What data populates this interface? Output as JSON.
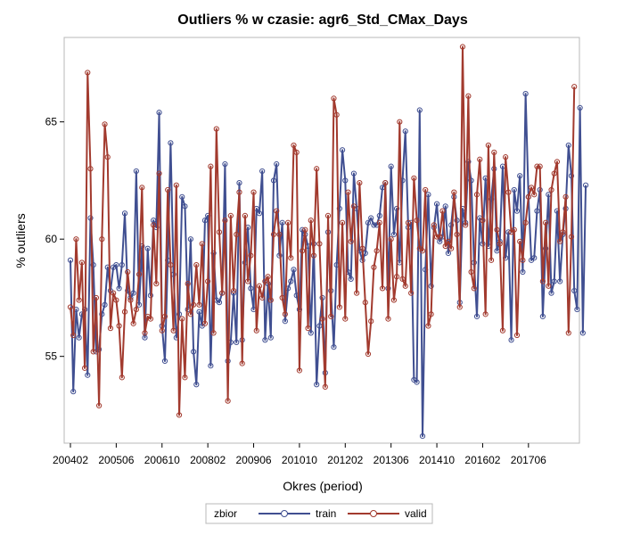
{
  "chart_data": {
    "type": "line",
    "title": "Outliers % w czasie: agr6_Std_CMax_Days",
    "xlabel": "Okres (period)",
    "ylabel": "% outliers",
    "ylim": [
      51.3,
      68.6
    ],
    "y_ticks": [
      "55",
      "60",
      "65"
    ],
    "x_tick_labels": [
      "200402",
      "200506",
      "200610",
      "200802",
      "200906",
      "201010",
      "201202",
      "201306",
      "201410",
      "201602",
      "201706"
    ],
    "legend": {
      "title": "zbior",
      "position": "bottom"
    },
    "x_index_range": [
      0,
      175
    ],
    "series": [
      {
        "name": "train",
        "color": "#404f91",
        "values": [
          59.1,
          53.5,
          57.0,
          55.8,
          56.8,
          57.0,
          54.2,
          60.9,
          58.9,
          55.2,
          55.3,
          56.8,
          57.2,
          58.8,
          57.8,
          58.8,
          58.9,
          57.9,
          58.9,
          61.1,
          57.8,
          57.5,
          57.7,
          62.9,
          57.2,
          59.7,
          55.8,
          59.6,
          57.6,
          60.8,
          60.5,
          65.4,
          56.3,
          54.8,
          59.1,
          64.1,
          58.5,
          55.8,
          56.8,
          61.8,
          61.4,
          57.0,
          60.0,
          55.2,
          53.8,
          56.9,
          56.3,
          60.8,
          61.0,
          54.6,
          59.4,
          57.4,
          57.3,
          57.7,
          63.2,
          54.8,
          55.6,
          57.7,
          55.6,
          62.4,
          55.7,
          59.0,
          60.5,
          57.9,
          57.0,
          61.3,
          61.1,
          62.9,
          55.7,
          58.1,
          55.8,
          62.5,
          63.2,
          59.3,
          60.7,
          56.5,
          57.9,
          58.2,
          58.7,
          57.6,
          57.0,
          60.4,
          60.2,
          59.7,
          56.0,
          59.8,
          53.8,
          56.3,
          57.5,
          54.3,
          60.3,
          57.8,
          55.4,
          58.9,
          61.3,
          63.8,
          62.5,
          58.6,
          58.3,
          62.8,
          61.3,
          59.5,
          59.1,
          59.4,
          60.7,
          60.9,
          60.6,
          60.6,
          61.0,
          62.2,
          62.4,
          57.9,
          63.1,
          60.2,
          61.3,
          59.0,
          62.5,
          64.6,
          60.5,
          60.7,
          54.0,
          53.9,
          65.5,
          51.6,
          58.7,
          61.9,
          58.0,
          60.5,
          61.5,
          59.9,
          60.1,
          61.4,
          59.4,
          60.6,
          61.8,
          60.8,
          57.3,
          61.3,
          60.7,
          63.3,
          62.5,
          59.0,
          56.7,
          60.9,
          59.8,
          62.6,
          59.7,
          61.7,
          63.0,
          59.5,
          59.9,
          63.1,
          59.2,
          60.3,
          55.7,
          62.1,
          61.2,
          62.7,
          58.6,
          66.2,
          61.8,
          59.1,
          59.2,
          61.2,
          62.1,
          56.7,
          59.6,
          61.9,
          57.7,
          58.2,
          61.2,
          58.2,
          60.2,
          61.3,
          64.0,
          62.7,
          57.8,
          57.0,
          65.6,
          56.0,
          62.3
        ]
      },
      {
        "name": "valid",
        "color": "#a23a2e",
        "values": [
          57.1,
          55.9,
          60.0,
          57.4,
          59.0,
          54.5,
          67.1,
          63.0,
          55.2,
          57.5,
          52.9,
          60.0,
          64.9,
          63.5,
          56.2,
          57.7,
          57.4,
          56.3,
          54.1,
          56.9,
          58.6,
          57.4,
          56.4,
          57.0,
          58.5,
          62.2,
          56.0,
          56.7,
          56.6,
          60.6,
          58.1,
          62.8,
          56.1,
          56.7,
          62.1,
          58.9,
          56.1,
          62.3,
          52.5,
          56.6,
          54.1,
          58.1,
          56.8,
          57.2,
          58.9,
          57.2,
          59.8,
          56.4,
          58.2,
          63.1,
          56.0,
          64.7,
          60.3,
          57.7,
          60.8,
          53.1,
          61.0,
          57.8,
          60.2,
          62.0,
          54.7,
          61.0,
          58.2,
          59.3,
          62.0,
          56.1,
          58.0,
          57.5,
          58.2,
          58.4,
          57.4,
          60.2,
          61.2,
          60.2,
          57.5,
          56.8,
          60.7,
          59.2,
          64.0,
          63.7,
          54.4,
          59.5,
          60.4,
          56.2,
          60.8,
          59.3,
          63.0,
          59.8,
          56.6,
          53.7,
          61.0,
          56.7,
          66.0,
          65.3,
          57.1,
          60.7,
          56.6,
          62.0,
          59.9,
          61.4,
          57.7,
          62.4,
          59.6,
          57.3,
          55.1,
          56.5,
          58.8,
          59.5,
          60.7,
          57.9,
          62.4,
          56.6,
          60.0,
          57.4,
          58.4,
          65.0,
          58.3,
          58.0,
          60.7,
          57.7,
          62.6,
          60.8,
          59.6,
          59.5,
          62.1,
          56.3,
          56.8,
          60.6,
          60.1,
          60.1,
          61.2,
          59.7,
          59.9,
          59.6,
          62.0,
          60.2,
          57.1,
          68.2,
          60.6,
          66.1,
          58.6,
          57.9,
          61.9,
          63.4,
          60.8,
          56.8,
          64.0,
          59.1,
          63.7,
          60.4,
          59.8,
          56.1,
          63.5,
          62.0,
          60.3,
          60.4,
          55.9,
          59.9,
          59.1,
          60.7,
          61.8,
          62.2,
          61.9,
          63.1,
          63.1,
          58.2,
          60.7,
          58.0,
          62.1,
          62.8,
          63.3,
          59.9,
          60.3,
          61.8,
          56.0,
          60.1,
          66.5
        ]
      }
    ]
  }
}
